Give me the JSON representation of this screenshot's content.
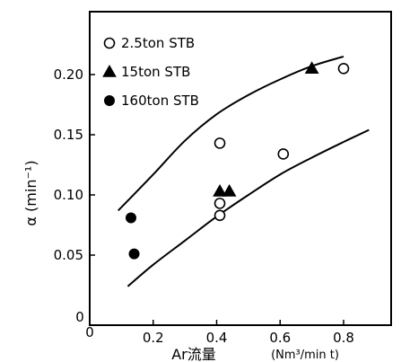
{
  "chart_data": {
    "type": "scatter",
    "title": "",
    "xlabel": "Ar流量",
    "xlabel_unit": "(Nm³/min t)",
    "ylabel": "α (min⁻¹)",
    "xlim": [
      -0.05,
      0.95
    ],
    "ylim": [
      -0.02,
      0.245
    ],
    "x_ticks": [
      "0.2",
      "0.4",
      "0.6",
      "0.8"
    ],
    "y_ticks": [
      "0.05",
      "0.10",
      "0.15",
      "0.20"
    ],
    "origin_labels": [
      "0",
      "0"
    ],
    "legend_position": "top-left",
    "grid": false,
    "series": [
      {
        "name": "2.5ton STB",
        "marker": "open-circle",
        "points": [
          {
            "x": 0.41,
            "y": 0.143
          },
          {
            "x": 0.41,
            "y": 0.093
          },
          {
            "x": 0.41,
            "y": 0.083
          },
          {
            "x": 0.61,
            "y": 0.134
          },
          {
            "x": 0.8,
            "y": 0.205
          }
        ]
      },
      {
        "name": "15ton STB",
        "marker": "filled-triangle",
        "points": [
          {
            "x": 0.41,
            "y": 0.103
          },
          {
            "x": 0.44,
            "y": 0.103
          },
          {
            "x": 0.7,
            "y": 0.205
          }
        ]
      },
      {
        "name": "160ton STB",
        "marker": "filled-circle",
        "points": [
          {
            "x": 0.13,
            "y": 0.081
          },
          {
            "x": 0.14,
            "y": 0.051
          }
        ]
      }
    ],
    "curves": [
      {
        "points": [
          [
            0.09,
            0.087
          ],
          [
            0.2,
            0.117
          ],
          [
            0.3,
            0.145
          ],
          [
            0.4,
            0.167
          ],
          [
            0.5,
            0.183
          ],
          [
            0.6,
            0.196
          ],
          [
            0.7,
            0.207
          ],
          [
            0.8,
            0.215
          ]
        ]
      },
      {
        "points": [
          [
            0.12,
            0.024
          ],
          [
            0.2,
            0.042
          ],
          [
            0.3,
            0.062
          ],
          [
            0.4,
            0.082
          ],
          [
            0.5,
            0.1
          ],
          [
            0.6,
            0.117
          ],
          [
            0.7,
            0.131
          ],
          [
            0.8,
            0.144
          ],
          [
            0.88,
            0.154
          ]
        ]
      }
    ]
  }
}
